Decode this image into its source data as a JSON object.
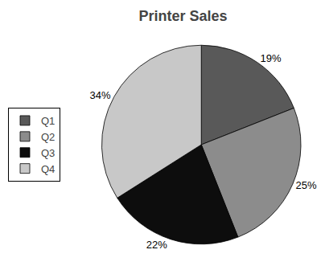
{
  "chart_data": {
    "type": "pie",
    "title": "Printer Sales",
    "categories": [
      "Q1",
      "Q2",
      "Q3",
      "Q4"
    ],
    "values": [
      19,
      25,
      22,
      34
    ],
    "value_labels": [
      "19%",
      "25%",
      "22%",
      "34%"
    ],
    "colors": [
      "#595959",
      "#8c8c8c",
      "#0d0d0d",
      "#c8c8c8"
    ],
    "data_labels": true,
    "legend": "left"
  }
}
